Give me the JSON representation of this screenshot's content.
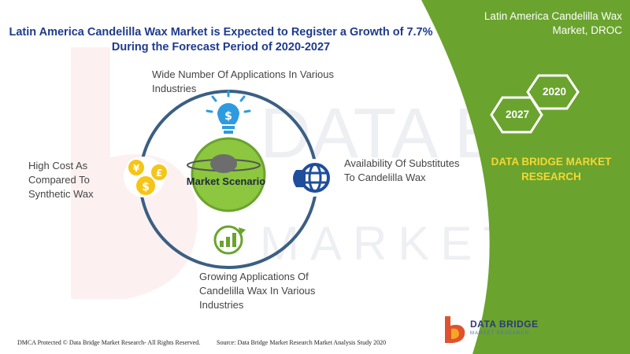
{
  "title": "Latin America Candelilla Wax Market is Expected to Register a Growth of 7.7% During the Forecast Period of 2020-2027",
  "panel": {
    "title": "Latin America Candelilla Wax Market, DROC",
    "years": [
      "2020",
      "2027"
    ],
    "brand": "DATA BRIDGE MARKET RESEARCH"
  },
  "diagram": {
    "center": "Market Scenario",
    "top": "Wide Number Of Applications In Various Industries",
    "left": "High Cost As Compared To Synthetic Wax",
    "right": "Availability Of Substitutes To Candelilla Wax",
    "bottom": "Growing Applications Of Candelilla Wax In Various Industries"
  },
  "icons": {
    "top": "lightbulb-dollar-icon",
    "left": "currency-coins-icon",
    "right": "globe-icon",
    "bottom": "growth-chart-icon",
    "center": "planet-icon"
  },
  "colors": {
    "green": "#6aa32e",
    "blue": "#1f4e9c",
    "yellow": "#f5d733",
    "ring": "#3b5f83"
  },
  "footer": {
    "left": "DMCA Protected © Data Bridge Market Research- All Rights Reserved.",
    "right": "Source: Data Bridge Market Research Market Analysis Study 2020"
  },
  "logo": {
    "name": "DATA BRIDGE",
    "sub": "MARKET RESEARCH"
  }
}
